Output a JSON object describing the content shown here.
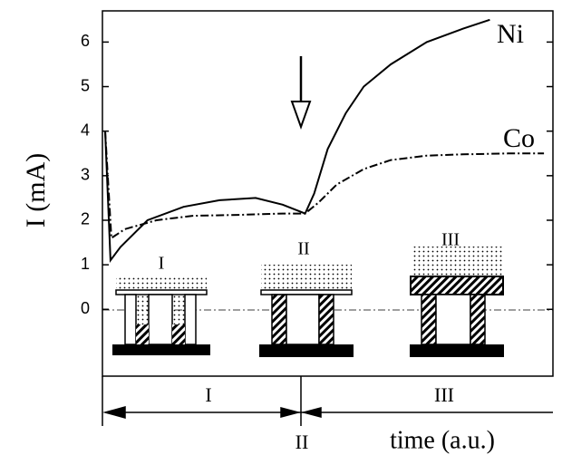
{
  "chart_data": {
    "type": "line",
    "ylabel": "I (mA)",
    "xlabel": "time (a.u.)",
    "xlim": [
      0,
      100
    ],
    "ylim": [
      -1.5,
      6.7
    ],
    "yticks": [
      0,
      1,
      2,
      3,
      4,
      5,
      6
    ],
    "series": [
      {
        "name": "Ni",
        "color": "#000000",
        "style": "solid",
        "x": [
          0.6,
          1.8,
          4,
          10,
          18,
          26,
          34,
          40,
          45,
          47,
          50,
          54,
          58,
          64,
          72,
          80,
          86
        ],
        "values": [
          4.0,
          1.1,
          1.4,
          2.0,
          2.3,
          2.45,
          2.5,
          2.35,
          2.15,
          2.6,
          3.6,
          4.4,
          5.0,
          5.5,
          6.0,
          6.3,
          6.5
        ]
      },
      {
        "name": "Co",
        "color": "#000000",
        "style": "dashdot",
        "x": [
          0.6,
          2,
          5,
          12,
          20,
          30,
          40,
          45,
          48,
          52,
          58,
          64,
          72,
          80,
          90,
          98
        ],
        "values": [
          4.0,
          1.6,
          1.8,
          2.0,
          2.1,
          2.12,
          2.15,
          2.15,
          2.4,
          2.8,
          3.15,
          3.35,
          3.45,
          3.48,
          3.5,
          3.5
        ]
      }
    ],
    "insets": [
      "I",
      "II",
      "III"
    ],
    "stages": [
      "I",
      "II",
      "III"
    ]
  }
}
